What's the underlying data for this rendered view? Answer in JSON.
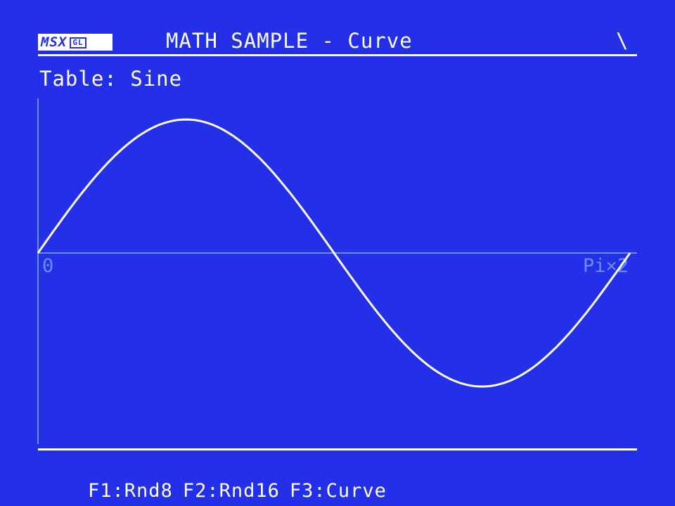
{
  "header": {
    "logo_text": "MSX",
    "logo_badge": "GL",
    "title": "MATH SAMPLE - Curve",
    "spinner": "\\"
  },
  "table": {
    "label": "Table:",
    "value": "Sine"
  },
  "chart_data": {
    "type": "line",
    "x_start_label": "0",
    "x_end_label": "Pi×2",
    "xlim": [
      0,
      6.283
    ],
    "ylim": [
      -1.1,
      1.1
    ],
    "series": [
      {
        "function": "sin",
        "color": "#ffffff"
      }
    ]
  },
  "footer": {
    "keys": [
      {
        "label": "F1:Rnd8"
      },
      {
        "label": "F2:Rnd16"
      },
      {
        "label": "F3:Curve"
      }
    ]
  },
  "colors": {
    "background": "#2430e8",
    "foreground": "#ffffff",
    "axis": "#6a8cff"
  }
}
